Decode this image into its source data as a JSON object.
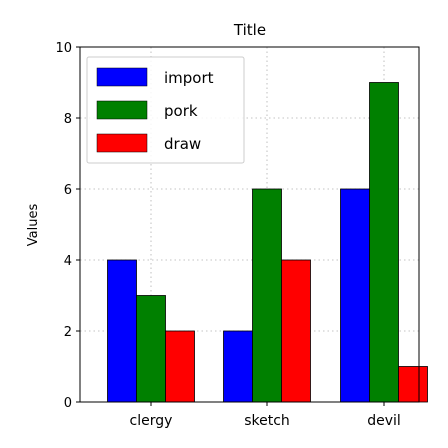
{
  "chart_data": {
    "type": "bar",
    "title": "Title",
    "xlabel": "",
    "ylabel": "Values",
    "categories": [
      "clergy",
      "sketch",
      "devil"
    ],
    "series": [
      {
        "name": "import",
        "color": "#0000ff",
        "values": [
          4,
          2,
          6
        ]
      },
      {
        "name": "pork",
        "color": "#008000",
        "values": [
          3,
          6,
          9
        ]
      },
      {
        "name": "draw",
        "color": "#ff0000",
        "values": [
          2,
          4,
          1
        ]
      }
    ],
    "ylim": [
      0,
      10
    ],
    "yticks": [
      "0",
      "2",
      "4",
      "6",
      "8",
      "10"
    ],
    "grid": true,
    "legend_position": "top-left"
  }
}
